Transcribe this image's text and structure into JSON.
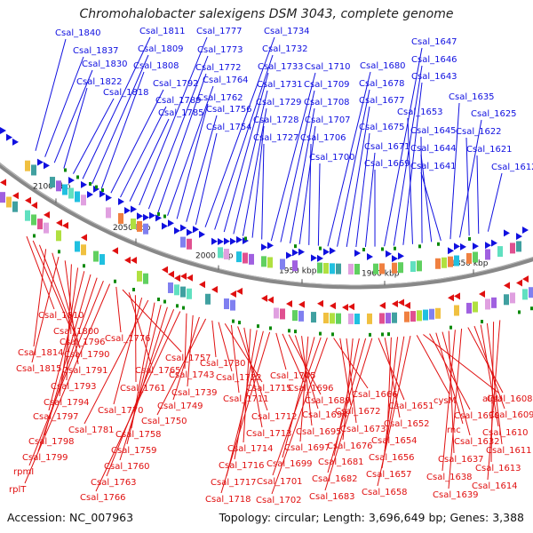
{
  "title": "Chromohalobacter salexigens DSM 3043, complete genome",
  "footer": {
    "accession": "Accession: NC_007963",
    "topology": "Topology: circular; Length: 3,696,649 bp; Genes: 3,388"
  },
  "colors": {
    "forward": "#1010e0",
    "reverse": "#e01010",
    "backbone": "#888888",
    "rna_marker": "#0a8a0a"
  },
  "scale_labels": [
    "2100 kbp",
    "2050 kbp",
    "2000 kbp",
    "1950 kbp",
    "1900 kbp",
    "1850 kbp"
  ],
  "forward_genes": [
    "Csal_1840",
    "Csal_1837",
    "Csal_1830",
    "Csal_1822",
    "Csal_1818",
    "Csal_1811",
    "Csal_1809",
    "Csal_1808",
    "Csal_1792",
    "Csal_1789",
    "Csal_1785",
    "Csal_1777",
    "Csal_1773",
    "Csal_1772",
    "Csal_1764",
    "Csal_1762",
    "Csal_1756",
    "Csal_1754",
    "Csal_1734",
    "Csal_1732",
    "Csal_1733",
    "Csal_1731",
    "Csal_1729",
    "Csal_1728",
    "Csal_1727",
    "Csal_1710",
    "Csal_1709",
    "Csal_1708",
    "Csal_1707",
    "Csal_1706",
    "Csal_1700",
    "Csal_1680",
    "Csal_1678",
    "Csal_1677",
    "Csal_1675",
    "Csal_1671",
    "Csal_1669",
    "Csal_1647",
    "Csal_1646",
    "Csal_1643",
    "Csal_1653",
    "Csal_1645",
    "Csal_1644",
    "Csal_1641",
    "Csal_1635",
    "Csal_1625",
    "Csal_1622",
    "Csal_1621",
    "Csal_1612"
  ],
  "reverse_genes": [
    "Csal_1810",
    "Csal_1800",
    "Csal_1796",
    "Csal_1814",
    "Csal_1790",
    "Csal_1815",
    "Csal_1791",
    "Csal_1793",
    "Csal_1794",
    "Csal_1797",
    "Csal_1798",
    "Csal_1799",
    "rpmI",
    "rplT",
    "Csal_1776",
    "Csal_1757",
    "Csal_1765",
    "Csal_1761",
    "Csal_1770",
    "Csal_1781",
    "Csal_1758",
    "Csal_1759",
    "Csal_1760",
    "Csal_1763",
    "Csal_1766",
    "Csal_1743",
    "Csal_1739",
    "Csal_1749",
    "Csal_1750",
    "Csal_1730",
    "Csal_1722",
    "Csal_1715",
    "Csal_1711",
    "Csal_1712",
    "Csal_1713",
    "Csal_1714",
    "Csal_1716",
    "Csal_1717",
    "Csal_1718",
    "Csal_1705",
    "Csal_1696",
    "Csal_1689",
    "Csal_1694",
    "Csal_1695",
    "Csal_1697",
    "Csal_1699",
    "Csal_1701",
    "Csal_1702",
    "Csal_1666",
    "Csal_1672",
    "Csal_1673",
    "Csal_1676",
    "Csal_1681",
    "Csal_1682",
    "Csal_1683",
    "Csal_1651",
    "Csal_1652",
    "Csal_1654",
    "Csal_1656",
    "Csal_1657",
    "Csal_1658",
    "cysM",
    "algU",
    "Csal_1630",
    "rnc",
    "Csal_1632",
    "Csal_1637",
    "Csal_1638",
    "Csal_1639",
    "Csal_1608",
    "Csal_1609",
    "Csal_1610",
    "Csal_1611",
    "Csal_1613",
    "Csal_1614"
  ]
}
